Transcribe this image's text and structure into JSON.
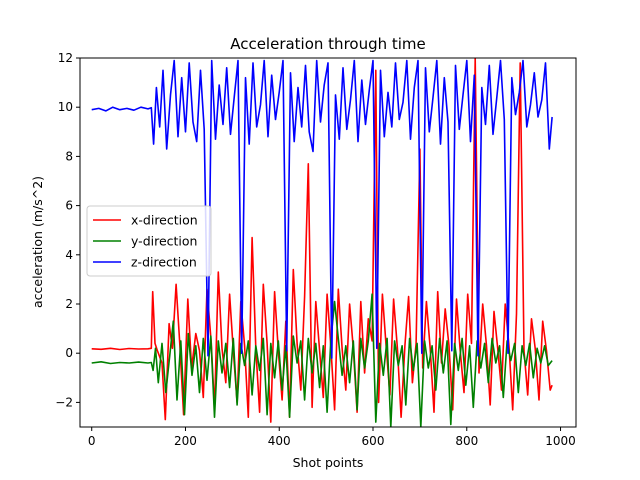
{
  "chart_data": {
    "type": "line",
    "title": "Acceleration through time",
    "xlabel": "Shot points",
    "ylabel": "acceleration (m/s^2)",
    "xlim": [
      -25,
      1033
    ],
    "ylim": [
      -3,
      12
    ],
    "xticks": [
      0,
      200,
      400,
      600,
      800,
      1000
    ],
    "yticks": [
      -2,
      0,
      2,
      4,
      6,
      8,
      10,
      12
    ],
    "legend_position": "center-left",
    "grid": false,
    "series": [
      {
        "name": "x-direction",
        "color": "#ff0000",
        "x": [
          0,
          20,
          40,
          60,
          80,
          100,
          120,
          127,
          130,
          135,
          140,
          150,
          157,
          165,
          172,
          180,
          188,
          196,
          205,
          213,
          222,
          230,
          238,
          246,
          255,
          262,
          270,
          278,
          286,
          294,
          302,
          310,
          318,
          326,
          334,
          342,
          350,
          358,
          366,
          374,
          382,
          390,
          398,
          406,
          414,
          422,
          430,
          438,
          446,
          454,
          462,
          470,
          478,
          486,
          494,
          502,
          510,
          518,
          526,
          534,
          542,
          550,
          558,
          566,
          574,
          582,
          590,
          598,
          606,
          612,
          620,
          628,
          636,
          644,
          652,
          660,
          668,
          676,
          684,
          692,
          700,
          706,
          714,
          722,
          730,
          738,
          746,
          754,
          762,
          770,
          778,
          786,
          794,
          802,
          810,
          818,
          826,
          834,
          842,
          850,
          858,
          866,
          874,
          882,
          890,
          898,
          906,
          914,
          922,
          930,
          938,
          946,
          954,
          962,
          970,
          978,
          982
        ],
        "y": [
          0.18,
          0.16,
          0.2,
          0.15,
          0.19,
          0.17,
          0.18,
          0.2,
          2.5,
          0.4,
          0.1,
          -0.4,
          -2.7,
          1.2,
          0.2,
          2.8,
          0.3,
          -2.5,
          2.2,
          -0.6,
          0.8,
          0.1,
          -1.8,
          2.6,
          0.4,
          -2.3,
          3.3,
          0.2,
          -1.2,
          2.4,
          0.1,
          -2.0,
          2.1,
          0.3,
          -2.6,
          4.7,
          0.2,
          -2.4,
          2.8,
          0.4,
          -2.8,
          2.5,
          0.1,
          -1.9,
          1.3,
          -2.6,
          3.4,
          0.4,
          -1.5,
          2.3,
          7.7,
          -2.2,
          2.1,
          0.1,
          -1.8,
          2.4,
          0.3,
          -2.3,
          2.6,
          0.2,
          -1.5,
          2.0,
          0.2,
          -2.4,
          2.1,
          -0.8,
          1.4,
          0.5,
          11.5,
          -2.0,
          2.4,
          0.3,
          -1.7,
          2.2,
          0.2,
          -2.6,
          0.3,
          2.3,
          -1.2,
          0.4,
          8.3,
          -0.6,
          2.1,
          0.2,
          -2.4,
          2.5,
          -0.4,
          1.8,
          0.3,
          -2.3,
          2.2,
          0.1,
          -1.6,
          2.4,
          0.4,
          12.0,
          -0.8,
          2.0,
          0.3,
          -2.1,
          1.7,
          0.2,
          -1.5,
          2.0,
          0.3,
          -2.3,
          1.6,
          11.8,
          0.1,
          -1.7,
          1.4,
          0.2,
          -1.9,
          1.3,
          0.1,
          -1.5,
          -1.3
        ]
      },
      {
        "name": "y-direction",
        "color": "#008000",
        "x": [
          0,
          20,
          40,
          60,
          80,
          100,
          120,
          127,
          131,
          136,
          142,
          150,
          158,
          166,
          174,
          182,
          190,
          198,
          206,
          214,
          222,
          230,
          238,
          246,
          254,
          262,
          270,
          278,
          286,
          294,
          302,
          310,
          318,
          326,
          334,
          342,
          350,
          358,
          366,
          374,
          382,
          390,
          398,
          406,
          414,
          422,
          430,
          438,
          446,
          454,
          462,
          470,
          478,
          486,
          494,
          502,
          510,
          518,
          526,
          534,
          542,
          550,
          558,
          566,
          574,
          582,
          590,
          598,
          606,
          614,
          622,
          630,
          638,
          646,
          654,
          662,
          670,
          678,
          686,
          694,
          702,
          710,
          718,
          726,
          734,
          742,
          750,
          758,
          766,
          774,
          782,
          790,
          798,
          806,
          814,
          822,
          830,
          838,
          846,
          854,
          862,
          870,
          878,
          886,
          894,
          902,
          910,
          918,
          926,
          934,
          942,
          950,
          958,
          966,
          974,
          982
        ],
        "y": [
          -0.4,
          -0.35,
          -0.42,
          -0.38,
          -0.4,
          -0.36,
          -0.4,
          -0.38,
          -0.7,
          0.2,
          -1.2,
          0.4,
          -1.6,
          -0.2,
          1.3,
          -1.9,
          0.5,
          -2.5,
          0.8,
          -0.9,
          0.3,
          -1.6,
          0.6,
          -1.1,
          0.7,
          -2.6,
          0.5,
          -0.8,
          0.4,
          -1.4,
          0.6,
          -2.1,
          0.4,
          -0.5,
          0.5,
          -1.7,
          0.3,
          -0.7,
          0.6,
          -2.5,
          0.4,
          -1.0,
          0.5,
          -1.5,
          0.3,
          -2.6,
          0.7,
          -0.4,
          0.5,
          -1.9,
          0.6,
          -0.8,
          0.4,
          -1.4,
          0.3,
          -2.4,
          0.5,
          2.1,
          0.6,
          -0.9,
          0.3,
          -1.2,
          0.5,
          -2.3,
          0.6,
          -0.6,
          0.5,
          2.4,
          -2.8,
          0.4,
          -0.9,
          0.6,
          -3.0,
          0.5,
          -0.5,
          0.3,
          -2.1,
          0.6,
          -0.7,
          0.4,
          -3.0,
          0.5,
          -0.6,
          0.3,
          -1.5,
          0.6,
          -0.8,
          0.5,
          -2.9,
          0.4,
          -0.7,
          0.6,
          -1.3,
          0.3,
          -2.2,
          0.5,
          -0.6,
          0.4,
          -1.2,
          0.6,
          -0.4,
          0.3,
          -1.8,
          0.5,
          -0.3,
          0.4,
          -1.6,
          0.3,
          -0.5,
          0.4,
          -1.0,
          0.2,
          -0.4,
          0.3,
          -0.5,
          -0.3
        ]
      },
      {
        "name": "z-direction",
        "color": "#0000ff",
        "x": [
          0,
          15,
          30,
          45,
          60,
          75,
          90,
          105,
          120,
          127,
          132,
          138,
          145,
          152,
          160,
          168,
          176,
          184,
          192,
          200,
          208,
          216,
          224,
          232,
          240,
          248,
          256,
          264,
          272,
          280,
          288,
          296,
          304,
          312,
          320,
          328,
          336,
          344,
          352,
          360,
          368,
          376,
          384,
          392,
          400,
          408,
          416,
          424,
          432,
          440,
          448,
          456,
          464,
          472,
          480,
          488,
          496,
          504,
          512,
          520,
          528,
          536,
          544,
          552,
          560,
          568,
          576,
          584,
          592,
          600,
          608,
          616,
          624,
          632,
          640,
          648,
          656,
          664,
          672,
          680,
          688,
          696,
          704,
          712,
          720,
          728,
          736,
          744,
          752,
          760,
          768,
          776,
          784,
          792,
          800,
          808,
          816,
          824,
          832,
          840,
          848,
          856,
          864,
          872,
          880,
          888,
          896,
          904,
          912,
          920,
          928,
          936,
          944,
          952,
          960,
          968,
          976,
          982
        ],
        "y": [
          9.9,
          9.95,
          9.85,
          10.0,
          9.9,
          9.95,
          9.88,
          10.0,
          9.93,
          9.98,
          8.5,
          10.8,
          9.2,
          11.5,
          8.3,
          10.5,
          11.9,
          8.8,
          11.2,
          9.0,
          11.8,
          9.4,
          8.6,
          11.5,
          9.1,
          -0.1,
          11.9,
          8.7,
          10.9,
          9.3,
          11.6,
          8.9,
          10.4,
          11.9,
          0.0,
          11.2,
          8.5,
          11.8,
          9.2,
          10.1,
          11.9,
          8.8,
          11.3,
          9.5,
          10.6,
          11.9,
          0.1,
          11.4,
          8.6,
          10.8,
          9.2,
          11.7,
          9.0,
          8.2,
          11.9,
          9.4,
          10.9,
          11.8,
          -0.2,
          10.5,
          8.7,
          11.6,
          9.1,
          10.3,
          11.9,
          8.6,
          11.1,
          9.3,
          10.7,
          11.9,
          0.2,
          11.5,
          8.8,
          10.6,
          9.2,
          11.8,
          9.5,
          10.2,
          11.9,
          8.7,
          10.8,
          11.9,
          0.0,
          11.6,
          9.0,
          10.4,
          11.9,
          8.5,
          11.2,
          9.4,
          0.1,
          11.7,
          9.1,
          10.5,
          11.9,
          8.6,
          11.3,
          -0.1,
          10.8,
          9.3,
          11.7,
          8.9,
          10.4,
          11.9,
          9.5,
          0.0,
          11.2,
          9.7,
          10.6,
          11.9,
          9.2,
          10.1,
          11.4,
          9.6,
          10.3,
          11.8,
          8.3,
          9.6
        ]
      }
    ]
  }
}
